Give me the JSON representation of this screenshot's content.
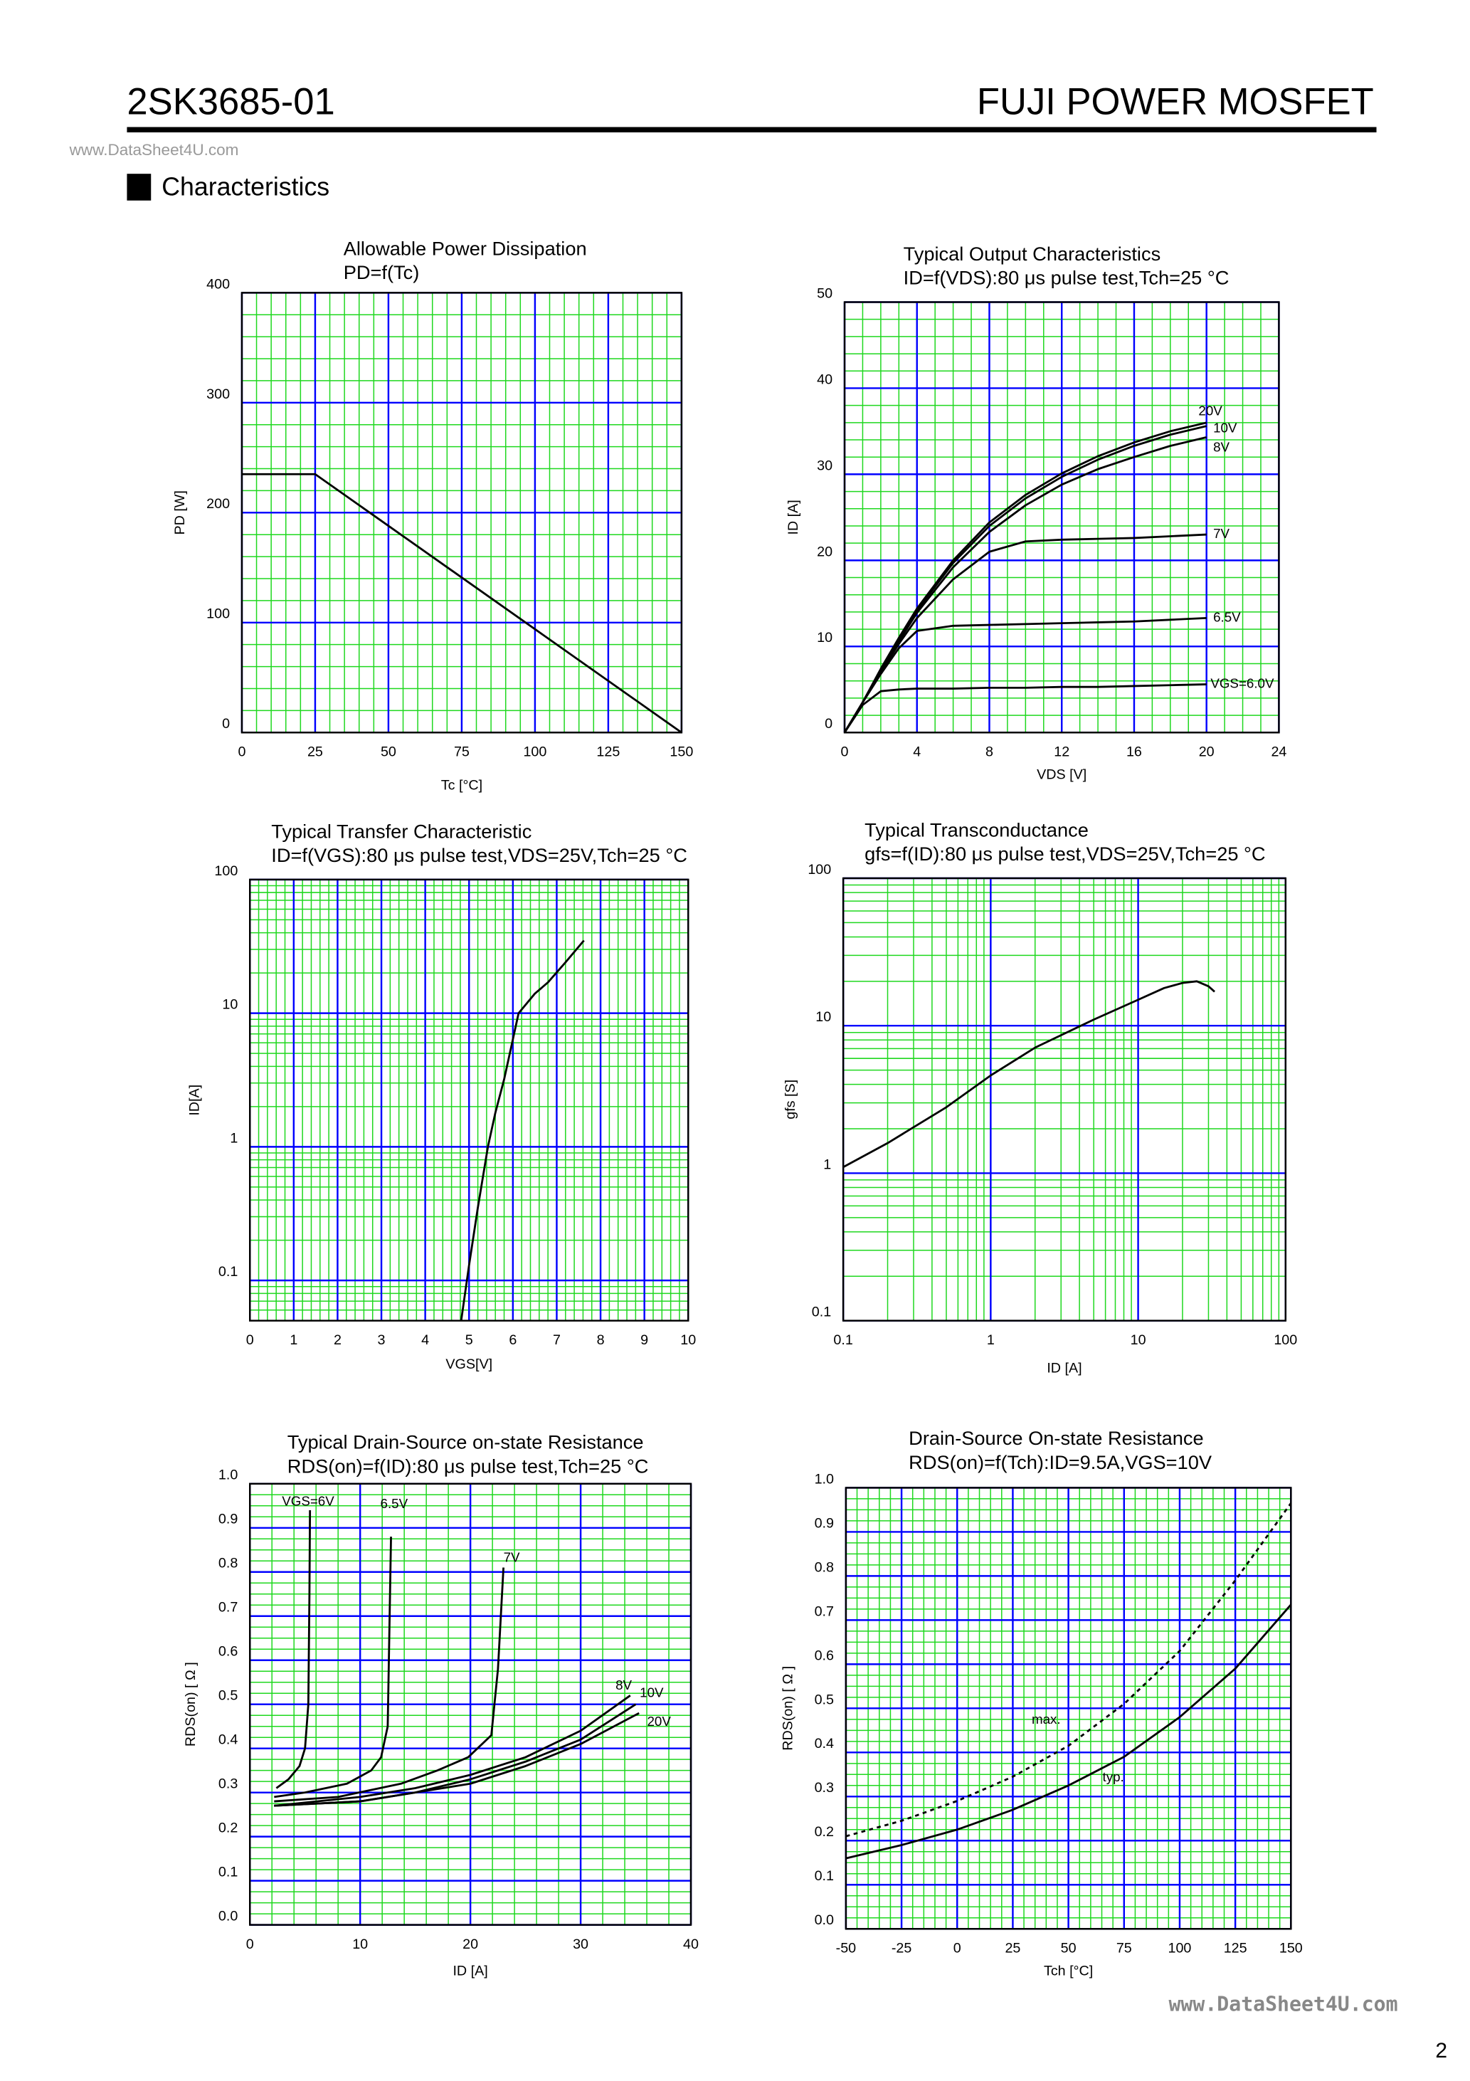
{
  "header": {
    "part_number": "2SK3685-01",
    "product_line": "FUJI POWER MOSFET",
    "watermark": "www.DataSheet4U.com",
    "section": "Characteristics"
  },
  "footer": {
    "watermark": "www.DataSheet4U.com",
    "page": "2"
  },
  "chart_data": [
    {
      "type": "line",
      "title": "Allowable Power Dissipation",
      "subtitle": "PD=f(Tc)",
      "x_label": "Tc [°C]",
      "y_label": "PD [W]",
      "xlim": [
        0,
        150
      ],
      "xticks": [
        0,
        25,
        50,
        75,
        100,
        125,
        150
      ],
      "ylim": [
        0,
        400
      ],
      "yticks": [
        0,
        100,
        200,
        300,
        400
      ],
      "grid": true,
      "grid_color": "#0000ff",
      "minor_grid": {
        "x": 5,
        "y": 5
      },
      "minor_grid_color": "#1fd81f",
      "series": [
        {
          "color": "#000000",
          "x": [
            0,
            25,
            150
          ],
          "values": [
            235,
            235,
            0
          ]
        }
      ]
    },
    {
      "type": "line",
      "title": "Typical Output Characteristics",
      "subtitle": "ID=f(VDS):80 μs pulse test,Tch=25 °C",
      "x_label": "VDS [V]",
      "y_label": "ID [A]",
      "xlim": [
        0,
        24
      ],
      "xticks": [
        0,
        4,
        8,
        12,
        16,
        20,
        24
      ],
      "ylim": [
        0,
        50
      ],
      "yticks": [
        0,
        10,
        20,
        30,
        40,
        50
      ],
      "grid": true,
      "grid_color": "#0000ff",
      "minor_grid": {
        "x": 4,
        "y": 5
      },
      "minor_grid_color": "#1fd81f",
      "legend": "line-end",
      "series": [
        {
          "name": "20V",
          "color": "#000000",
          "x": [
            0,
            1,
            2,
            3,
            4,
            6,
            8,
            10,
            12,
            14,
            16,
            18,
            20
          ],
          "values": [
            0,
            3.5,
            7.4,
            11,
            14.4,
            20,
            24.4,
            27.6,
            30.1,
            32.1,
            33.7,
            35,
            36
          ]
        },
        {
          "name": "10V",
          "color": "#000000",
          "x": [
            0,
            1,
            2,
            3,
            4,
            6,
            8,
            10,
            12,
            14,
            16,
            18,
            20
          ],
          "values": [
            0,
            3.5,
            7.3,
            10.8,
            14.2,
            19.7,
            24,
            27.2,
            29.7,
            31.7,
            33.3,
            34.6,
            35.6
          ]
        },
        {
          "name": "8V",
          "color": "#000000",
          "x": [
            0,
            1,
            2,
            3,
            4,
            6,
            8,
            10,
            12,
            14,
            16,
            18,
            20
          ],
          "values": [
            0,
            3.5,
            7.2,
            10.6,
            13.9,
            19.2,
            23.3,
            26.4,
            28.8,
            30.6,
            32,
            33.3,
            34.3
          ]
        },
        {
          "name": "7V",
          "color": "#000000",
          "x": [
            0,
            1,
            2,
            3,
            4,
            6,
            8,
            10,
            12,
            14,
            16,
            18,
            20
          ],
          "values": [
            0,
            3.5,
            7,
            10.3,
            13.3,
            17.8,
            21,
            22.2,
            22.4,
            22.5,
            22.6,
            22.8,
            23
          ]
        },
        {
          "name": "6.5V",
          "color": "#000000",
          "x": [
            0,
            1,
            2,
            3,
            4,
            6,
            8,
            10,
            12,
            14,
            16,
            18,
            20
          ],
          "values": [
            0,
            3.5,
            6.8,
            9.8,
            11.8,
            12.4,
            12.5,
            12.6,
            12.7,
            12.8,
            12.9,
            13.1,
            13.3
          ]
        },
        {
          "name": "VGS=6.0V",
          "color": "#000000",
          "x": [
            0,
            1,
            2,
            3,
            4,
            6,
            8,
            10,
            12,
            14,
            16,
            18,
            20
          ],
          "values": [
            0,
            3.2,
            4.8,
            5,
            5.1,
            5.1,
            5.2,
            5.2,
            5.3,
            5.3,
            5.4,
            5.5,
            5.6
          ]
        }
      ]
    },
    {
      "type": "line",
      "title": "Typical Transfer Characteristic",
      "subtitle": "ID=f(VGS):80 μs pulse test,VDS=25V,Tch=25  °C",
      "x_label": "VGS[V]",
      "y_label": "ID[A]",
      "xlim": [
        0,
        10
      ],
      "xticks": [
        0,
        1,
        2,
        3,
        4,
        5,
        6,
        7,
        8,
        9,
        10
      ],
      "ylim": [
        0.05,
        100
      ],
      "yticks": [
        0.1,
        1,
        10,
        100
      ],
      "log_y": true,
      "grid": true,
      "grid_color": "#0000ff",
      "minor_grid": {
        "x": 5
      },
      "minor_grid_color": "#1fd81f",
      "series": [
        {
          "color": "#000000",
          "x": [
            4.82,
            5,
            5.2,
            5.43,
            5.6,
            5.8,
            6.13,
            6.5,
            6.8,
            7.2,
            7.62
          ],
          "values": [
            0.05,
            0.13,
            0.35,
            1,
            1.8,
            3.2,
            10,
            14,
            17,
            24,
            35
          ]
        }
      ]
    },
    {
      "type": "line",
      "title": "Typical Transconductance",
      "subtitle": "gfs=f(ID):80 μs pulse test,VDS=25V,Tch=25  °C",
      "x_label": "ID [A]",
      "y_label": "gfs [S]",
      "xlim": [
        0.1,
        100
      ],
      "xticks": [
        0.1,
        1,
        10,
        100
      ],
      "ylim": [
        0.1,
        100
      ],
      "yticks": [
        0.1,
        1,
        10,
        100
      ],
      "log_x": true,
      "log_y": true,
      "grid": true,
      "grid_color": "#0000ff",
      "minor_grid_color": "#1fd81f",
      "series": [
        {
          "color": "#000000",
          "x": [
            0.1,
            0.2,
            0.5,
            1,
            2,
            5,
            10,
            15,
            20,
            25,
            30,
            33
          ],
          "values": [
            1.1,
            1.6,
            2.8,
            4.6,
            7.1,
            11,
            15,
            18,
            19.5,
            20,
            18.5,
            17
          ]
        }
      ]
    },
    {
      "type": "line",
      "title": "Typical Drain-Source on-state Resistance",
      "subtitle": "RDS(on)=f(ID):80  μs pulse test,Tch=25 °C",
      "x_label": "ID [A]",
      "y_label": "RDS(on) [ Ω ]",
      "xlim": [
        0,
        40
      ],
      "xticks": [
        0,
        10,
        20,
        30,
        40
      ],
      "ylim": [
        0,
        1
      ],
      "yticks": [
        {
          "value": 0,
          "label": "0.0"
        },
        0.1,
        0.2,
        0.3,
        0.4,
        0.5,
        0.6,
        0.7,
        0.8,
        0.9,
        {
          "value": 1,
          "label": "1.0"
        }
      ],
      "grid": true,
      "grid_color": "#0000ff",
      "minor_grid": {
        "x": 5,
        "y": 4
      },
      "minor_grid_color": "#1fd81f",
      "legend": "line-end",
      "series": [
        {
          "name": "VGS=6V",
          "color": "#000000",
          "x": [
            2.4,
            3.5,
            4.5,
            5,
            5.3,
            5.4,
            5.45
          ],
          "values": [
            0.31,
            0.33,
            0.36,
            0.4,
            0.5,
            0.75,
            0.94
          ]
        },
        {
          "name": "6.5V",
          "color": "#000000",
          "x": [
            2.2,
            5,
            8.8,
            11,
            11.9,
            12.5,
            12.8
          ],
          "values": [
            0.29,
            0.3,
            0.32,
            0.35,
            0.38,
            0.45,
            0.88
          ]
        },
        {
          "name": "7V",
          "color": "#000000",
          "x": [
            2.2,
            8,
            13.7,
            17,
            19.8,
            21.9,
            22.5,
            23
          ],
          "values": [
            0.28,
            0.29,
            0.32,
            0.35,
            0.38,
            0.43,
            0.58,
            0.81
          ]
        },
        {
          "name": "8V",
          "color": "#000000",
          "x": [
            2.2,
            10,
            15,
            20,
            25,
            30,
            34.5
          ],
          "values": [
            0.27,
            0.29,
            0.31,
            0.34,
            0.38,
            0.44,
            0.52
          ]
        },
        {
          "name": "10V",
          "color": "#000000",
          "x": [
            2.2,
            10,
            15,
            20,
            25,
            30,
            35
          ],
          "values": [
            0.27,
            0.28,
            0.3,
            0.33,
            0.37,
            0.42,
            0.5
          ]
        },
        {
          "name": "20V",
          "color": "#000000",
          "x": [
            2.2,
            10,
            15,
            20,
            25,
            30,
            35.3
          ],
          "values": [
            0.27,
            0.28,
            0.3,
            0.32,
            0.36,
            0.41,
            0.48
          ]
        }
      ]
    },
    {
      "type": "line",
      "title": "Drain-Source On-state Resistance",
      "subtitle": "RDS(on)=f(Tch):ID=9.5A,VGS=10V",
      "x_label": "Tch [°C]",
      "y_label": "RDS(on) [ Ω ]",
      "xlim": [
        -50,
        150
      ],
      "xticks": [
        -50,
        -25,
        0,
        25,
        50,
        75,
        100,
        125,
        150
      ],
      "ylim": [
        0,
        1
      ],
      "yticks": [
        {
          "value": 0,
          "label": "0.0"
        },
        0.1,
        0.2,
        0.3,
        0.4,
        0.5,
        0.6,
        0.7,
        0.8,
        0.9,
        {
          "value": 1,
          "label": "1.0"
        }
      ],
      "grid": true,
      "grid_color": "#0000ff",
      "minor_grid": {
        "x": 5,
        "y": 4
      },
      "minor_grid_color": "#1fd81f",
      "legend": "inline",
      "series": [
        {
          "name": "max.",
          "color": "#000000",
          "style": "dashed",
          "x": [
            -50,
            -25,
            0,
            25,
            50,
            75,
            100,
            125,
            150
          ],
          "values": [
            0.21,
            0.245,
            0.29,
            0.345,
            0.415,
            0.51,
            0.63,
            0.79,
            0.965
          ]
        },
        {
          "name": "typ.",
          "color": "#000000",
          "style": "solid",
          "x": [
            -50,
            -25,
            0,
            25,
            50,
            75,
            100,
            125,
            150
          ],
          "values": [
            0.16,
            0.19,
            0.225,
            0.27,
            0.325,
            0.39,
            0.48,
            0.59,
            0.735
          ]
        }
      ]
    }
  ]
}
